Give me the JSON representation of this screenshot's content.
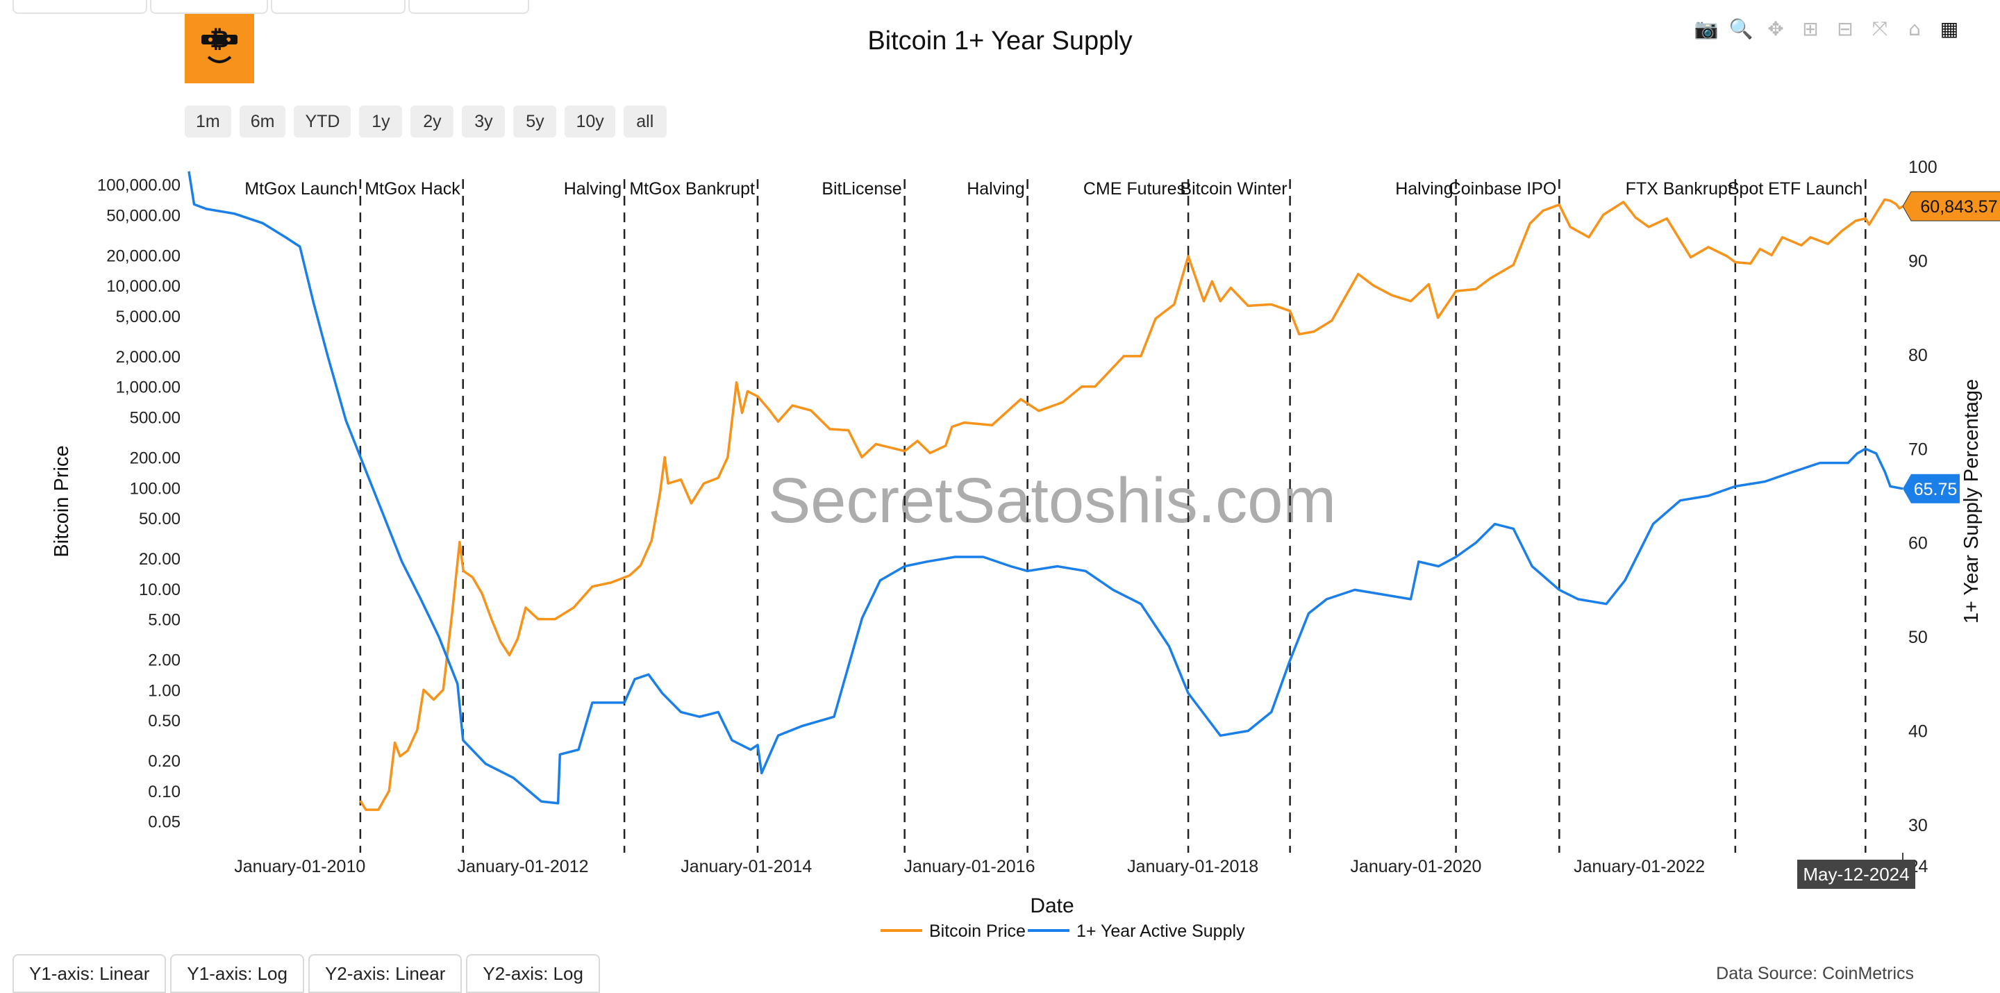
{
  "colors": {
    "price": "#f7931a",
    "supply": "#1a7fe8",
    "event_line": "#222222",
    "tooltip": "#444444"
  },
  "logo": {
    "icon": "bitcoin-mask-icon"
  },
  "modebar": [
    {
      "name": "camera-icon",
      "glyph": "📷"
    },
    {
      "name": "zoom-icon",
      "glyph": "🔍"
    },
    {
      "name": "pan-icon",
      "glyph": "✥"
    },
    {
      "name": "zoom-in-icon",
      "glyph": "⊞"
    },
    {
      "name": "zoom-out-icon",
      "glyph": "⊟"
    },
    {
      "name": "autoscale-icon",
      "glyph": "⤧"
    },
    {
      "name": "reset-axes-icon",
      "glyph": "⌂"
    },
    {
      "name": "plotly-logo-icon",
      "glyph": "▦"
    }
  ],
  "range_buttons": [
    "1m",
    "6m",
    "YTD",
    "1y",
    "2y",
    "3y",
    "5y",
    "10y",
    "all"
  ],
  "axis_buttons": [
    "Y1-axis: Linear",
    "Y1-axis: Log",
    "Y2-axis: Linear",
    "Y2-axis: Log"
  ],
  "data_source": "Data Source: CoinMetrics",
  "watermark": "SecretSatoshis.com",
  "chart_data": {
    "type": "line",
    "title": "Bitcoin 1+ Year Supply",
    "xlabel": "Date",
    "ylabel": "Bitcoin Price",
    "y2label": "1+ Year Supply Percentage",
    "xlim": [
      "2009-01-03",
      "2024-05-12"
    ],
    "y_scale": "log",
    "ylim": [
      0.03,
      150000
    ],
    "y2lim": [
      28,
      100
    ],
    "x_ticks": [
      "January-01-2010",
      "January-01-2012",
      "January-01-2014",
      "January-01-2016",
      "January-01-2018",
      "January-01-2020",
      "January-01-2022",
      "January-01-2024"
    ],
    "x_tick_dates": [
      "2010-01-01",
      "2012-01-01",
      "2014-01-01",
      "2016-01-01",
      "2018-01-01",
      "2020-01-01",
      "2022-01-01",
      "2024-01-01"
    ],
    "y_ticks": [
      "100,000.00",
      "50,000.00",
      "20,000.00",
      "10,000.00",
      "5,000.00",
      "2,000.00",
      "1,000.00",
      "500.00",
      "200.00",
      "100.00",
      "50.00",
      "20.00",
      "10.00",
      "5.00",
      "2.00",
      "1.00",
      "0.50",
      "0.20",
      "0.10",
      "0.05"
    ],
    "y_tick_values": [
      100000,
      50000,
      20000,
      10000,
      5000,
      2000,
      1000,
      500,
      200,
      100,
      50,
      20,
      10,
      5,
      2,
      1,
      0.5,
      0.2,
      0.1,
      0.05
    ],
    "y2_ticks": [
      "100",
      "90",
      "80",
      "70",
      "60",
      "50",
      "40",
      "30"
    ],
    "y2_tick_values": [
      100,
      90,
      80,
      70,
      60,
      50,
      40,
      30
    ],
    "legend_position": "bottom-center",
    "events": [
      {
        "label": "MtGox Launch",
        "date": "2010-07-18"
      },
      {
        "label": "MtGox Hack",
        "date": "2011-06-19"
      },
      {
        "label": "Halving",
        "date": "2012-11-28"
      },
      {
        "label": "MtGox Bankrupt",
        "date": "2014-02-07"
      },
      {
        "label": "BitLicense",
        "date": "2015-06-03"
      },
      {
        "label": "Halving",
        "date": "2016-07-09"
      },
      {
        "label": "CME Futures",
        "date": "2017-12-17"
      },
      {
        "label": "Bitcoin Winter",
        "date": "2018-11-15"
      },
      {
        "label": "Halving",
        "date": "2020-05-11"
      },
      {
        "label": "Coinbase IPO",
        "date": "2021-04-14"
      },
      {
        "label": "FTX Bankrupt",
        "date": "2022-11-11"
      },
      {
        "label": "Spot ETF Launch",
        "date": "2024-01-11"
      }
    ],
    "series": [
      {
        "name": "Bitcoin Price",
        "axis": "y",
        "points": [
          [
            "2010-07-18",
            0.08
          ],
          [
            "2010-08-05",
            0.065
          ],
          [
            "2010-09-15",
            0.065
          ],
          [
            "2010-10-20",
            0.1
          ],
          [
            "2010-11-08",
            0.3
          ],
          [
            "2010-11-25",
            0.22
          ],
          [
            "2010-12-20",
            0.25
          ],
          [
            "2011-01-20",
            0.4
          ],
          [
            "2011-02-10",
            1.0
          ],
          [
            "2011-03-15",
            0.8
          ],
          [
            "2011-04-15",
            1.0
          ],
          [
            "2011-05-15",
            6.0
          ],
          [
            "2011-06-08",
            29.0
          ],
          [
            "2011-06-20",
            15.0
          ],
          [
            "2011-07-20",
            13.0
          ],
          [
            "2011-08-20",
            9.0
          ],
          [
            "2011-09-20",
            5.0
          ],
          [
            "2011-10-20",
            3.0
          ],
          [
            "2011-11-18",
            2.2
          ],
          [
            "2011-12-15",
            3.2
          ],
          [
            "2012-01-10",
            6.5
          ],
          [
            "2012-02-20",
            5.0
          ],
          [
            "2012-04-15",
            5.0
          ],
          [
            "2012-06-15",
            6.5
          ],
          [
            "2012-08-15",
            10.5
          ],
          [
            "2012-10-15",
            11.5
          ],
          [
            "2012-12-15",
            13.5
          ],
          [
            "2013-01-20",
            17.0
          ],
          [
            "2013-02-25",
            30.0
          ],
          [
            "2013-03-25",
            90.0
          ],
          [
            "2013-04-09",
            200.0
          ],
          [
            "2013-04-20",
            110.0
          ],
          [
            "2013-06-01",
            120.0
          ],
          [
            "2013-07-05",
            70.0
          ],
          [
            "2013-08-15",
            110.0
          ],
          [
            "2013-10-01",
            125.0
          ],
          [
            "2013-11-01",
            200.0
          ],
          [
            "2013-11-30",
            1100.0
          ],
          [
            "2013-12-18",
            550.0
          ],
          [
            "2014-01-05",
            900.0
          ],
          [
            "2014-02-07",
            800.0
          ],
          [
            "2014-03-15",
            600.0
          ],
          [
            "2014-04-15",
            450.0
          ],
          [
            "2014-06-01",
            650.0
          ],
          [
            "2014-08-01",
            580.0
          ],
          [
            "2014-10-01",
            380.0
          ],
          [
            "2014-12-01",
            370.0
          ],
          [
            "2015-01-14",
            200.0
          ],
          [
            "2015-03-01",
            270.0
          ],
          [
            "2015-06-03",
            230.0
          ],
          [
            "2015-07-15",
            290.0
          ],
          [
            "2015-08-25",
            220.0
          ],
          [
            "2015-10-15",
            260.0
          ],
          [
            "2015-11-05",
            400.0
          ],
          [
            "2015-12-15",
            440.0
          ],
          [
            "2016-03-15",
            415.0
          ],
          [
            "2016-06-17",
            750.0
          ],
          [
            "2016-08-15",
            575.0
          ],
          [
            "2016-11-01",
            700.0
          ],
          [
            "2017-01-03",
            1000.0
          ],
          [
            "2017-02-15",
            1000.0
          ],
          [
            "2017-05-20",
            2000.0
          ],
          [
            "2017-07-15",
            2000.0
          ],
          [
            "2017-09-01",
            4700.0
          ],
          [
            "2017-11-01",
            6500.0
          ],
          [
            "2017-12-17",
            19500.0
          ],
          [
            "2018-02-06",
            7000.0
          ],
          [
            "2018-03-05",
            11000.0
          ],
          [
            "2018-04-01",
            7000.0
          ],
          [
            "2018-05-05",
            9500.0
          ],
          [
            "2018-07-01",
            6300.0
          ],
          [
            "2018-09-15",
            6500.0
          ],
          [
            "2018-11-15",
            5600.0
          ],
          [
            "2018-12-15",
            3300.0
          ],
          [
            "2019-02-01",
            3500.0
          ],
          [
            "2019-04-01",
            4500.0
          ],
          [
            "2019-06-26",
            13000.0
          ],
          [
            "2019-08-15",
            10000.0
          ],
          [
            "2019-10-15",
            8000.0
          ],
          [
            "2019-12-15",
            7000.0
          ],
          [
            "2020-02-12",
            10300.0
          ],
          [
            "2020-03-13",
            4800.0
          ],
          [
            "2020-05-11",
            8800.0
          ],
          [
            "2020-07-15",
            9200.0
          ],
          [
            "2020-09-01",
            11800.0
          ],
          [
            "2020-11-15",
            16000.0
          ],
          [
            "2021-01-08",
            41000.0
          ],
          [
            "2021-02-20",
            55000.0
          ],
          [
            "2021-04-14",
            63000.0
          ],
          [
            "2021-05-20",
            38000.0
          ],
          [
            "2021-07-20",
            30000.0
          ],
          [
            "2021-09-05",
            50000.0
          ],
          [
            "2021-11-10",
            67000.0
          ],
          [
            "2021-12-20",
            47000.0
          ],
          [
            "2022-02-01",
            38000.0
          ],
          [
            "2022-04-01",
            46000.0
          ],
          [
            "2022-06-18",
            19000.0
          ],
          [
            "2022-08-15",
            24000.0
          ],
          [
            "2022-10-15",
            19500.0
          ],
          [
            "2022-11-11",
            17000.0
          ],
          [
            "2022-12-31",
            16500.0
          ],
          [
            "2023-01-31",
            23000.0
          ],
          [
            "2023-03-10",
            20000.0
          ],
          [
            "2023-04-14",
            30000.0
          ],
          [
            "2023-06-15",
            25000.0
          ],
          [
            "2023-07-15",
            30000.0
          ],
          [
            "2023-09-10",
            25800.0
          ],
          [
            "2023-10-25",
            34500.0
          ],
          [
            "2023-12-10",
            43700.0
          ],
          [
            "2024-01-11",
            46000.0
          ],
          [
            "2024-01-23",
            40000.0
          ],
          [
            "2024-02-15",
            52000.0
          ],
          [
            "2024-03-14",
            71000.0
          ],
          [
            "2024-04-01",
            69000.0
          ],
          [
            "2024-04-20",
            64000.0
          ],
          [
            "2024-05-01",
            58000.0
          ],
          [
            "2024-05-12",
            60843.57
          ]
        ],
        "last_value_label": "60,843.57"
      },
      {
        "name": "1+ Year Active Supply",
        "axis": "y2",
        "points": [
          [
            "2009-01-03",
            99.5
          ],
          [
            "2009-01-20",
            96.0
          ],
          [
            "2009-03-01",
            95.5
          ],
          [
            "2009-06-01",
            95.0
          ],
          [
            "2009-09-01",
            94.0
          ],
          [
            "2009-11-15",
            92.5
          ],
          [
            "2010-01-01",
            91.5
          ],
          [
            "2010-02-15",
            85.5
          ],
          [
            "2010-04-01",
            80.0
          ],
          [
            "2010-06-01",
            73.0
          ],
          [
            "2010-08-01",
            68.0
          ],
          [
            "2010-10-01",
            63.0
          ],
          [
            "2010-12-01",
            58.0
          ],
          [
            "2011-02-01",
            54.0
          ],
          [
            "2011-04-01",
            50.0
          ],
          [
            "2011-06-01",
            45.0
          ],
          [
            "2011-06-19",
            39.0
          ],
          [
            "2011-09-01",
            36.5
          ],
          [
            "2011-12-01",
            35.0
          ],
          [
            "2012-03-01",
            32.5
          ],
          [
            "2012-04-25",
            32.3
          ],
          [
            "2012-05-01",
            37.5
          ],
          [
            "2012-07-01",
            38.0
          ],
          [
            "2012-08-15",
            43.0
          ],
          [
            "2012-11-28",
            43.0
          ],
          [
            "2013-01-01",
            45.5
          ],
          [
            "2013-02-15",
            46.0
          ],
          [
            "2013-04-01",
            44.0
          ],
          [
            "2013-06-01",
            42.0
          ],
          [
            "2013-08-01",
            41.5
          ],
          [
            "2013-10-01",
            42.0
          ],
          [
            "2013-11-15",
            39.0
          ],
          [
            "2014-01-15",
            38.0
          ],
          [
            "2014-02-07",
            38.5
          ],
          [
            "2014-02-20",
            35.5
          ],
          [
            "2014-04-15",
            39.5
          ],
          [
            "2014-07-01",
            40.5
          ],
          [
            "2014-10-15",
            41.5
          ],
          [
            "2015-01-15",
            52.0
          ],
          [
            "2015-03-15",
            56.0
          ],
          [
            "2015-06-03",
            57.5
          ],
          [
            "2015-08-15",
            58.0
          ],
          [
            "2015-11-15",
            58.5
          ],
          [
            "2016-02-15",
            58.5
          ],
          [
            "2016-05-15",
            57.5
          ],
          [
            "2016-07-09",
            57.0
          ],
          [
            "2016-10-15",
            57.5
          ],
          [
            "2017-01-15",
            57.0
          ],
          [
            "2017-04-15",
            55.0
          ],
          [
            "2017-07-15",
            53.5
          ],
          [
            "2017-10-15",
            49.0
          ],
          [
            "2017-12-17",
            44.0
          ],
          [
            "2018-04-01",
            39.5
          ],
          [
            "2018-07-01",
            40.0
          ],
          [
            "2018-09-15",
            42.0
          ],
          [
            "2018-11-15",
            47.5
          ],
          [
            "2019-01-15",
            52.5
          ],
          [
            "2019-03-15",
            54.0
          ],
          [
            "2019-06-15",
            55.0
          ],
          [
            "2019-09-15",
            54.5
          ],
          [
            "2019-12-15",
            54.0
          ],
          [
            "2020-01-10",
            58.0
          ],
          [
            "2020-03-15",
            57.5
          ],
          [
            "2020-05-11",
            58.5
          ],
          [
            "2020-07-15",
            60.0
          ],
          [
            "2020-09-15",
            62.0
          ],
          [
            "2020-11-15",
            61.5
          ],
          [
            "2021-01-15",
            57.5
          ],
          [
            "2021-04-14",
            55.0
          ],
          [
            "2021-06-15",
            54.0
          ],
          [
            "2021-09-15",
            53.5
          ],
          [
            "2021-11-15",
            56.0
          ],
          [
            "2022-02-15",
            62.0
          ],
          [
            "2022-05-15",
            64.5
          ],
          [
            "2022-08-15",
            65.0
          ],
          [
            "2022-11-11",
            66.0
          ],
          [
            "2023-02-15",
            66.5
          ],
          [
            "2023-05-15",
            67.5
          ],
          [
            "2023-08-15",
            68.5
          ],
          [
            "2023-11-15",
            68.5
          ],
          [
            "2023-12-15",
            69.5
          ],
          [
            "2024-01-11",
            70.0
          ],
          [
            "2024-02-15",
            69.5
          ],
          [
            "2024-03-15",
            67.5
          ],
          [
            "2024-04-01",
            66.0
          ],
          [
            "2024-05-12",
            65.75
          ]
        ],
        "last_value_label": "65.75"
      }
    ],
    "hover_label": "May-12-2024"
  }
}
